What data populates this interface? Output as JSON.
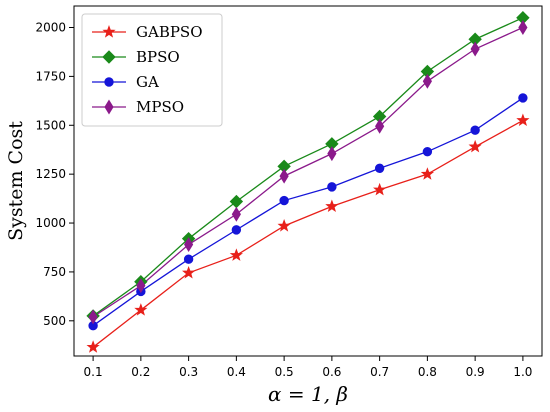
{
  "chart_data": {
    "type": "line",
    "xlabel": "α = 1, β",
    "ylabel": "System Cost",
    "x": [
      0.1,
      0.2,
      0.3,
      0.4,
      0.5,
      0.6,
      0.7,
      0.8,
      0.9,
      1.0
    ],
    "x_ticks": [
      "0.1",
      "0.2",
      "0.3",
      "0.4",
      "0.5",
      "0.6",
      "0.7",
      "0.8",
      "0.9",
      "1.0"
    ],
    "y_ticks": [
      "500",
      "750",
      "1000",
      "1250",
      "1500",
      "1750",
      "2000"
    ],
    "ylim": [
      320,
      2110
    ],
    "legend_position": "top-left",
    "series": [
      {
        "name": "GABPSO",
        "color": "#e8201a",
        "marker": "star",
        "values": [
          365,
          555,
          745,
          835,
          985,
          1085,
          1170,
          1250,
          1390,
          1525
        ]
      },
      {
        "name": "BPSO",
        "color": "#1a8a1a",
        "marker": "diamond",
        "values": [
          525,
          700,
          920,
          1110,
          1290,
          1405,
          1545,
          1775,
          1940,
          2050
        ]
      },
      {
        "name": "GA",
        "color": "#1515d8",
        "marker": "circle",
        "values": [
          475,
          650,
          815,
          965,
          1115,
          1185,
          1280,
          1365,
          1475,
          1640
        ]
      },
      {
        "name": "MPSO",
        "color": "#8b1a8b",
        "marker": "thin-diamond",
        "values": [
          520,
          680,
          890,
          1045,
          1240,
          1355,
          1495,
          1725,
          1890,
          2000
        ]
      }
    ]
  }
}
